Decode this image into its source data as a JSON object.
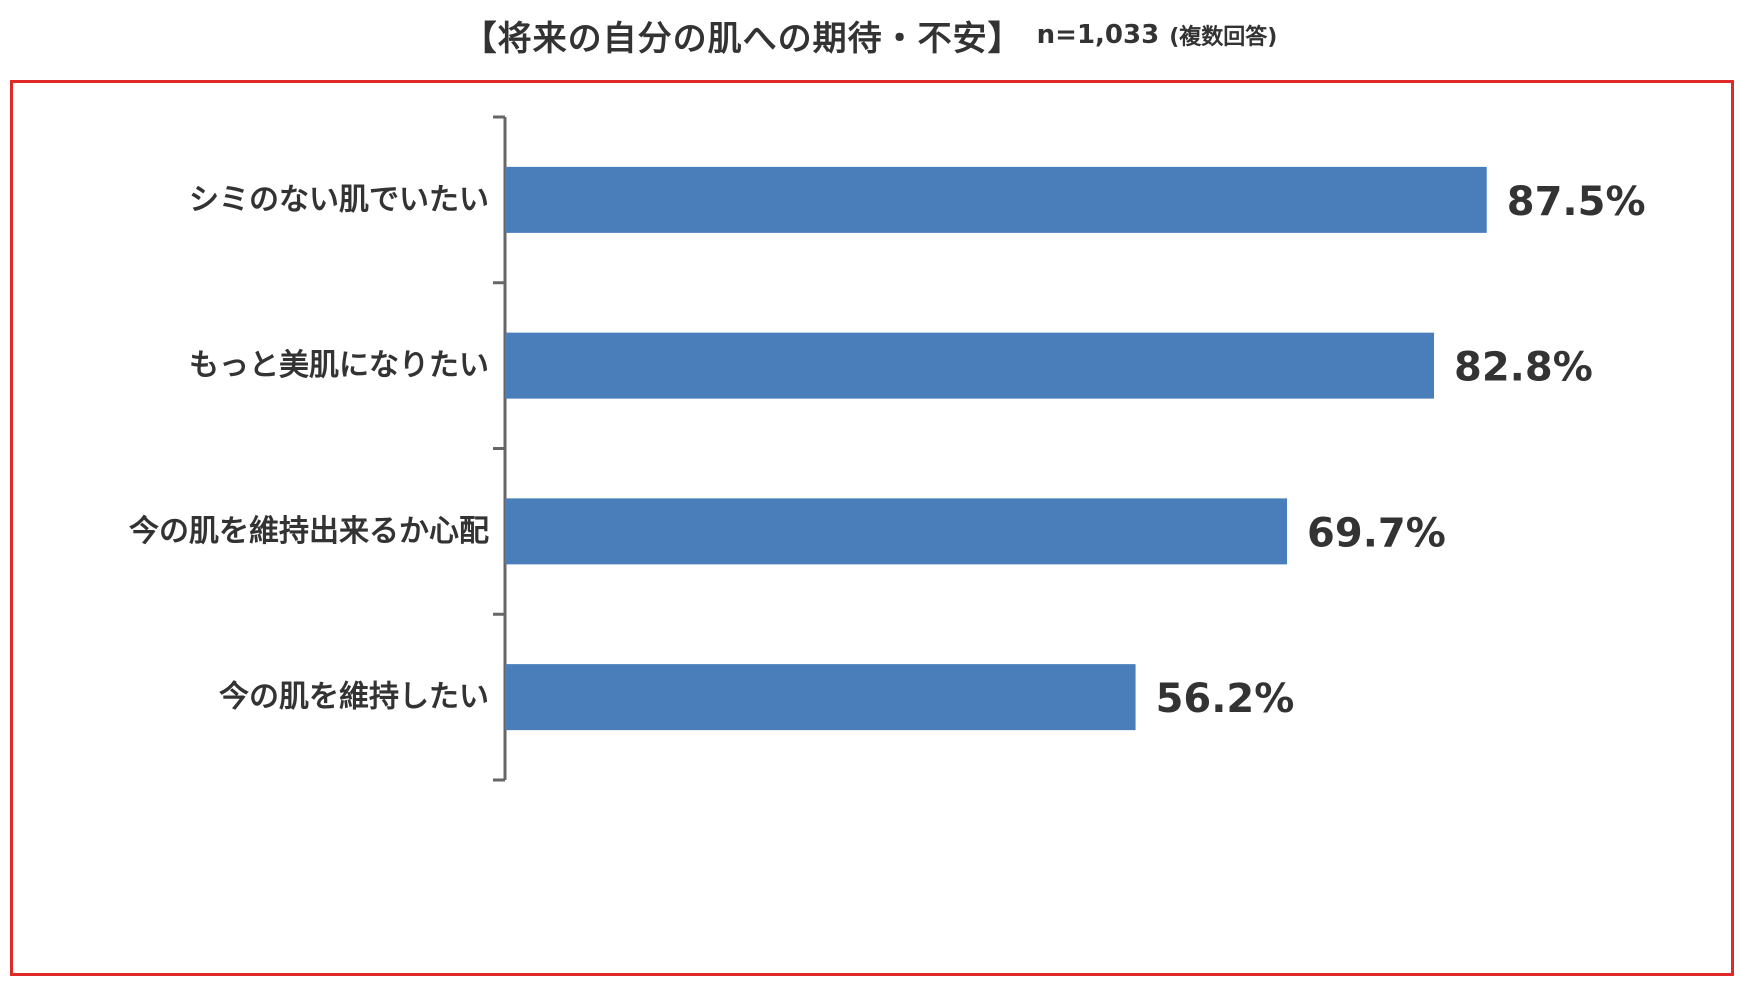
{
  "header": {
    "title": "【将来の自分の肌への期待・不安】",
    "sample": "n=1,033",
    "note": "(複数回答)"
  },
  "colors": {
    "bar": "#4a7ebb",
    "frame": "#e02a2a",
    "axis": "#666666"
  },
  "chart_data": {
    "type": "bar",
    "orientation": "horizontal",
    "categories": [
      "シミのない肌でいたい",
      "もっと美肌になりたい",
      "今の肌を維持出来るか心配",
      "今の肌を維持したい"
    ],
    "values": [
      87.5,
      82.8,
      69.7,
      56.2
    ],
    "value_labels": [
      "87.5%",
      "82.8%",
      "69.7%",
      "56.2%"
    ],
    "unit": "%",
    "xlim": [
      0,
      100
    ],
    "grid": false,
    "legend": "none"
  }
}
